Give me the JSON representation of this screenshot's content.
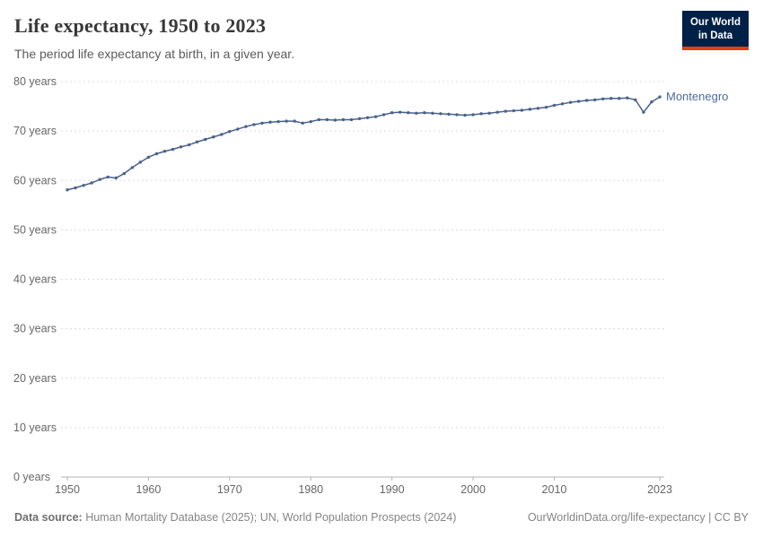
{
  "header": {
    "title": "Life expectancy, 1950 to 2023",
    "subtitle": "The period life expectancy at birth, in a given year."
  },
  "logo": {
    "line1": "Our World",
    "line2": "in Data"
  },
  "chart_data": {
    "type": "line",
    "title": "Life expectancy, 1950 to 2023",
    "xlabel": "",
    "ylabel": "",
    "xlim": [
      1950,
      2023
    ],
    "ylim": [
      0,
      80
    ],
    "grid": true,
    "legend_position": "end-of-line-label",
    "x": [
      1950,
      1951,
      1952,
      1953,
      1954,
      1955,
      1956,
      1957,
      1958,
      1959,
      1960,
      1961,
      1962,
      1963,
      1964,
      1965,
      1966,
      1967,
      1968,
      1969,
      1970,
      1971,
      1972,
      1973,
      1974,
      1975,
      1976,
      1977,
      1978,
      1979,
      1980,
      1981,
      1982,
      1983,
      1984,
      1985,
      1986,
      1987,
      1988,
      1989,
      1990,
      1991,
      1992,
      1993,
      1994,
      1995,
      1996,
      1997,
      1998,
      1999,
      2000,
      2001,
      2002,
      2003,
      2004,
      2005,
      2006,
      2007,
      2008,
      2009,
      2010,
      2011,
      2012,
      2013,
      2014,
      2015,
      2016,
      2017,
      2018,
      2019,
      2020,
      2021,
      2022,
      2023
    ],
    "series": [
      {
        "name": "Montenegro",
        "values": [
          58.1,
          58.5,
          59.0,
          59.5,
          60.2,
          60.7,
          60.5,
          61.4,
          62.6,
          63.7,
          64.7,
          65.4,
          65.9,
          66.3,
          66.8,
          67.2,
          67.8,
          68.3,
          68.8,
          69.3,
          69.9,
          70.4,
          70.9,
          71.3,
          71.6,
          71.8,
          71.9,
          72.0,
          72.0,
          71.6,
          71.9,
          72.3,
          72.3,
          72.2,
          72.3,
          72.3,
          72.5,
          72.7,
          72.9,
          73.3,
          73.7,
          73.8,
          73.7,
          73.6,
          73.7,
          73.6,
          73.5,
          73.4,
          73.3,
          73.2,
          73.3,
          73.5,
          73.6,
          73.8,
          74.0,
          74.1,
          74.2,
          74.4,
          74.6,
          74.8,
          75.2,
          75.5,
          75.8,
          76.0,
          76.2,
          76.3,
          76.5,
          76.6,
          76.6,
          76.7,
          76.3,
          73.8,
          75.9,
          76.9
        ]
      }
    ],
    "yticks": [
      {
        "value": 0,
        "label": "0 years"
      },
      {
        "value": 10,
        "label": "10 years"
      },
      {
        "value": 20,
        "label": "20 years"
      },
      {
        "value": 30,
        "label": "30 years"
      },
      {
        "value": 40,
        "label": "40 years"
      },
      {
        "value": 50,
        "label": "50 years"
      },
      {
        "value": 60,
        "label": "60 years"
      },
      {
        "value": 70,
        "label": "70 years"
      },
      {
        "value": 80,
        "label": "80 years"
      }
    ],
    "xticks": [
      {
        "value": 1950,
        "label": "1950"
      },
      {
        "value": 1960,
        "label": "1960"
      },
      {
        "value": 1970,
        "label": "1970"
      },
      {
        "value": 1980,
        "label": "1980"
      },
      {
        "value": 1990,
        "label": "1990"
      },
      {
        "value": 2000,
        "label": "2000"
      },
      {
        "value": 2010,
        "label": "2010"
      },
      {
        "value": 2023,
        "label": "2023"
      }
    ],
    "colors": {
      "line": "#4a618c",
      "entity_label": "#4c6a9c",
      "grid": "#dcdcdc",
      "axis": "#b3b3b3",
      "tick_text": "#666666"
    }
  },
  "footer": {
    "datasource_label": "Data source:",
    "datasource": " Human Mortality Database (2025); UN, World Population Prospects (2024)",
    "right": "OurWorldinData.org/life-expectancy | CC BY"
  }
}
